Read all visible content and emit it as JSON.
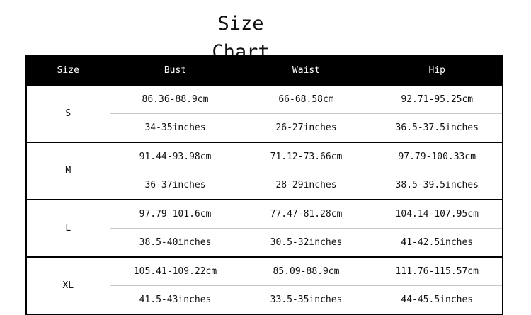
{
  "title": "Size Chart",
  "headers": [
    "Size",
    "Bust",
    "Waist",
    "Hip"
  ],
  "rows": [
    {
      "size": "S",
      "cm": [
        "86.36-88.9cm",
        "66-68.58cm",
        "92.71-95.25cm"
      ],
      "inches": [
        "34-35inches",
        "26-27inches",
        "36.5-37.5inches"
      ]
    },
    {
      "size": "M",
      "cm": [
        "91.44-93.98cm",
        "71.12-73.66cm",
        "97.79-100.33cm"
      ],
      "inches": [
        "36-37inches",
        "28-29inches",
        "38.5-39.5inches"
      ]
    },
    {
      "size": "L",
      "cm": [
        "97.79-101.6cm",
        "77.47-81.28cm",
        "104.14-107.95cm"
      ],
      "inches": [
        "38.5-40inches",
        "30.5-32inches",
        "41-42.5inches"
      ]
    },
    {
      "size": "XL",
      "cm": [
        "105.41-109.22cm",
        "85.09-88.9cm",
        "111.76-115.57cm"
      ],
      "inches": [
        "41.5-43inches",
        "33.5-35inches",
        "44-45.5inches"
      ]
    }
  ]
}
